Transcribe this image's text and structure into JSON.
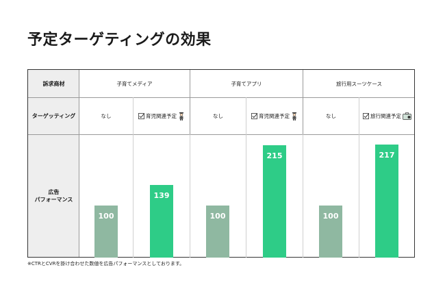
{
  "title": "予定ターゲティングの効果",
  "table": {
    "row_headers": [
      "訴求商材",
      "ターゲッティング",
      "広告\nパフォーマンス"
    ],
    "products": [
      "子育てメディア",
      "子育てアプリ",
      "旅行用スーツケース"
    ],
    "targeting": [
      {
        "label": "なし",
        "checked": false,
        "icon": ""
      },
      {
        "label": "育児関連予定",
        "checked": true,
        "icon": "parent-person-icon"
      },
      {
        "label": "なし",
        "checked": false,
        "icon": ""
      },
      {
        "label": "育児関連予定",
        "checked": true,
        "icon": "parent-person-icon"
      },
      {
        "label": "なし",
        "checked": false,
        "icon": ""
      },
      {
        "label": "旅行関連予定",
        "checked": true,
        "icon": "suitcase-icon"
      }
    ]
  },
  "chart_data": {
    "type": "bar",
    "categories": [
      "子育てメディア なし",
      "子育てメディア 育児関連予定",
      "子育てアプリ なし",
      "子育てアプリ 育児関連予定",
      "旅行用スーツケース なし",
      "旅行用スーツケース 旅行関連予定"
    ],
    "values": [
      100,
      139,
      100,
      215,
      100,
      217
    ],
    "colors": [
      "#8fb8a1",
      "#2ecc87",
      "#8fb8a1",
      "#2ecc87",
      "#8fb8a1",
      "#2ecc87"
    ],
    "ylim": [
      0,
      230
    ],
    "grid": false
  },
  "footnote": "※CTRとCVRを掛け合わせた数値を広告パフォーマンスとしております。"
}
